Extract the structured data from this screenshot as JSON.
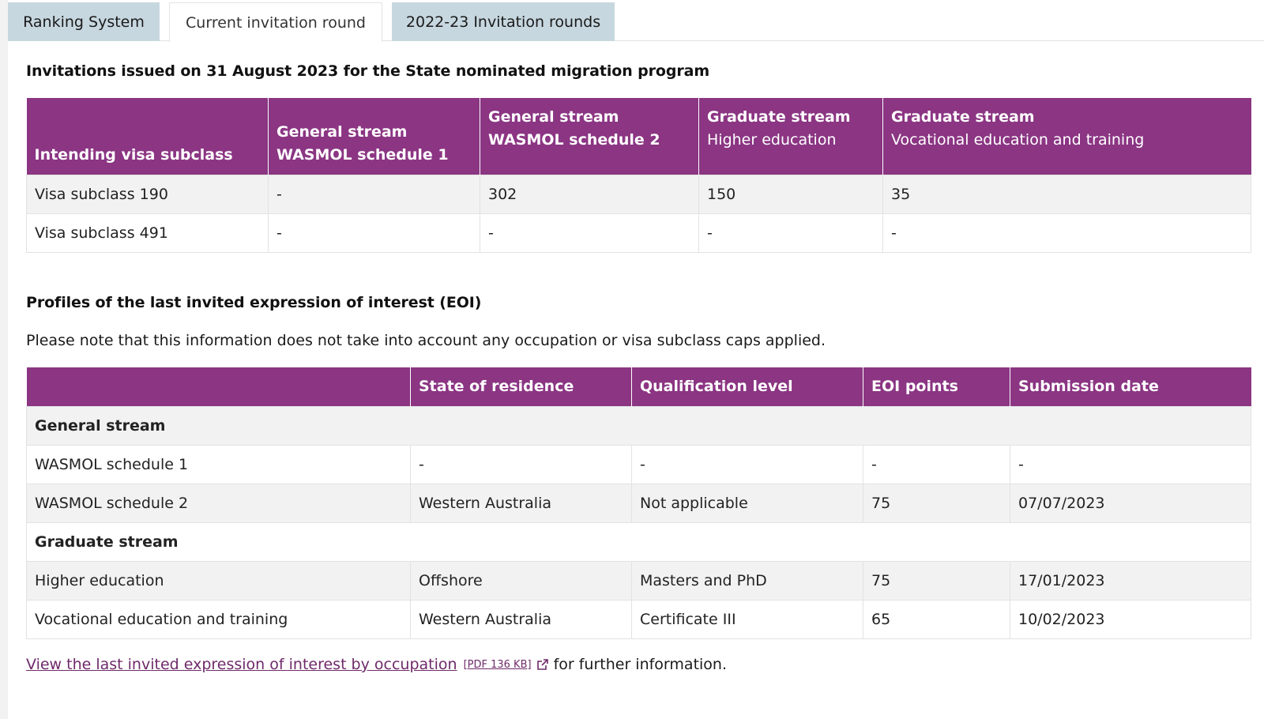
{
  "tabs": [
    {
      "label": "Ranking System"
    },
    {
      "label": "Current invitation round"
    },
    {
      "label": "2022-23 Invitation rounds"
    }
  ],
  "invitations": {
    "heading": "Invitations issued on 31 August 2023 for the State nominated migration program",
    "headers": {
      "col1": "Intending visa subclass",
      "col2_a": "General stream",
      "col2_b": "WASMOL schedule 1",
      "col3_a": "General stream",
      "col3_b": "WASMOL schedule 2",
      "col4_a": "Graduate stream",
      "col4_b": "Higher education",
      "col5_a": "Graduate stream",
      "col5_b": "Vocational education and training"
    },
    "rows": [
      {
        "subclass": "Visa subclass 190",
        "gen1": "-",
        "gen2": "302",
        "grad_he": "150",
        "grad_vet": "35"
      },
      {
        "subclass": "Visa subclass 491",
        "gen1": "-",
        "gen2": "-",
        "grad_he": "-",
        "grad_vet": "-"
      }
    ]
  },
  "eoi": {
    "heading": "Profiles of the last invited expression of interest (EOI)",
    "note": "Please note that this information does not take into account any occupation or visa subclass caps applied.",
    "headers": {
      "stream": "",
      "state": "State of residence",
      "qualification": "Qualification level",
      "points": "EOI points",
      "date": "Submission date"
    },
    "groups": [
      {
        "name": "General stream",
        "rows": [
          {
            "label": "WASMOL schedule 1",
            "state": "-",
            "qualification": "-",
            "points": "-",
            "date": "-"
          },
          {
            "label": "WASMOL schedule 2",
            "state": "Western Australia",
            "qualification": "Not applicable",
            "points": "75",
            "date": "07/07/2023"
          }
        ]
      },
      {
        "name": "Graduate stream",
        "rows": [
          {
            "label": "Higher education",
            "state": "Offshore",
            "qualification": "Masters and PhD",
            "points": "75",
            "date": "17/01/2023"
          },
          {
            "label": "Vocational education and training",
            "state": "Western Australia",
            "qualification": "Certificate III",
            "points": "65",
            "date": "10/02/2023"
          }
        ]
      }
    ]
  },
  "footer": {
    "link_text": "View the last invited expression of interest by occupation",
    "pdf_info": "[PDF 136 KB]",
    "suffix": "for further information."
  },
  "colors": {
    "header_purple": "#8b3583",
    "tab_inactive": "#c7d7df",
    "link_purple": "#6f2a6a"
  },
  "icons": {
    "external": "external-link-icon"
  }
}
